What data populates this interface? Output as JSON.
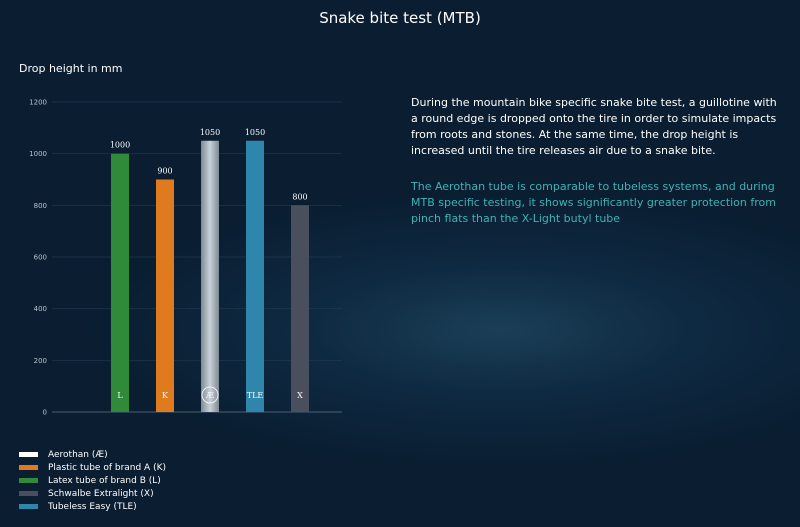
{
  "title": "Snake bite test (MTB)",
  "description": "During the mountain bike specific snake bite test, a guillotine with a round edge is dropped onto the tire in order to simulate impacts from roots and stones. At the same time, the drop height is increased until the tire releases air due to a snake bite.",
  "note": "The Aerothan tube is comparable to tubeless systems, and during MTB specific testing, it shows significantly greater protection from pinch flats than the X-Light butyl tube",
  "legend": [
    {
      "label": "Aerothan (Æ)",
      "color": "#ffffff"
    },
    {
      "label": "Plastic tube of brand A (K)",
      "color": "#e07a1f"
    },
    {
      "label": "Latex tube of brand B (L)",
      "color": "#2f8a3a"
    },
    {
      "label": "Schwalbe Extralight (X)",
      "color": "#4a4f5e"
    },
    {
      "label": "Tubeless Easy (TLE)",
      "color": "#2e86ac"
    }
  ],
  "chart_data": {
    "type": "bar",
    "ylabel": "Drop height in mm",
    "ylim": [
      0,
      1200
    ],
    "yticks": [
      0,
      200,
      400,
      600,
      800,
      1000,
      1200
    ],
    "categories": [
      "L",
      "K",
      "Æ",
      "TLE",
      "X"
    ],
    "values": [
      1000,
      900,
      1050,
      1050,
      800
    ],
    "colors": [
      "#2f8a3a",
      "#e07a1f",
      "#9aa5ae",
      "#2e86ac",
      "#4a4f5e"
    ],
    "grid": true
  }
}
